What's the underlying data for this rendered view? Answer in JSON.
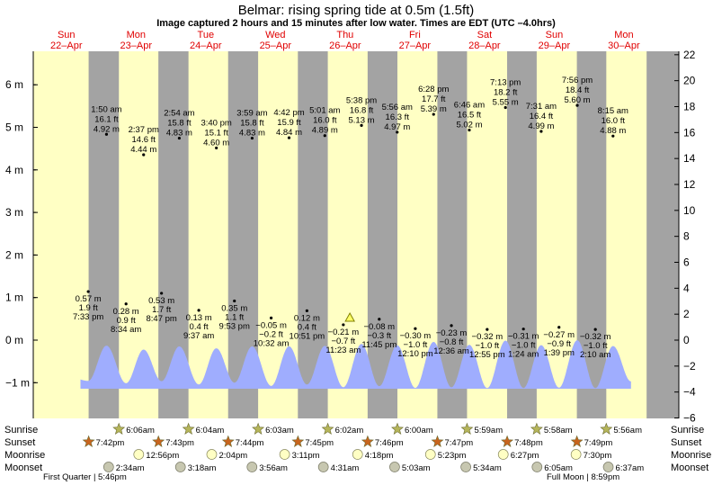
{
  "title": "Belmar: rising  spring tide at 0.5m (1.5ft)",
  "subtitle": "Image captured 2 hours and 15 minutes after low water. Times are EDT (UTC –4.0hrs)",
  "colors": {
    "water": "#9fadfe",
    "day": "#ffffc4",
    "night": "#a3a3a3",
    "dayLabel": "#e00000",
    "sun": "#b5b55a",
    "sunset": "#c8641e",
    "moonrise": "#ffffc4",
    "moonset": "#c7c7b0"
  },
  "chart_data": {
    "type": "area",
    "ylabel_left_unit": "m",
    "ylabel_right_unit": "ft",
    "ylim_m": [
      -1.75,
      6.7
    ],
    "left_ticks": [
      "−1 m",
      "0 m",
      "1 m",
      "2 m",
      "3 m",
      "4 m",
      "5 m",
      "6 m"
    ],
    "right_ticks": [
      "−6 ft",
      "−4 ft",
      "−2 ft",
      "0 ft",
      "2 ft",
      "4 ft",
      "6 ft",
      "8 ft",
      "10 ft",
      "12 ft",
      "14 ft",
      "16 ft",
      "18 ft",
      "20 ft",
      "22 ft"
    ],
    "days": [
      {
        "name": "Sun",
        "date": "22–Apr"
      },
      {
        "name": "Mon",
        "date": "23–Apr"
      },
      {
        "name": "Tue",
        "date": "24–Apr"
      },
      {
        "name": "Wed",
        "date": "25–Apr"
      },
      {
        "name": "Thu",
        "date": "26–Apr"
      },
      {
        "name": "Fri",
        "date": "27–Apr"
      },
      {
        "name": "Sat",
        "date": "28–Apr"
      },
      {
        "name": "Sun",
        "date": "29–Apr"
      },
      {
        "name": "Mon",
        "date": "30–Apr"
      }
    ],
    "high_tides": [
      {
        "time": "1:50 am",
        "ft": "16.1 ft",
        "m": "4.92 m"
      },
      {
        "time": "2:37 pm",
        "ft": "14.6 ft",
        "m": "4.44 m"
      },
      {
        "time": "2:54 am",
        "ft": "15.8 ft",
        "m": "4.83 m"
      },
      {
        "time": "3:40 pm",
        "ft": "15.1 ft",
        "m": "4.60 m"
      },
      {
        "time": "3:59 am",
        "ft": "15.8 ft",
        "m": "4.83 m"
      },
      {
        "time": "4:42 pm",
        "ft": "15.9 ft",
        "m": "4.84 m"
      },
      {
        "time": "5:01 am",
        "ft": "16.0 ft",
        "m": "4.89 m"
      },
      {
        "time": "5:38 pm",
        "ft": "16.8 ft",
        "m": "5.13 m"
      },
      {
        "time": "5:56 am",
        "ft": "16.3 ft",
        "m": "4.97 m"
      },
      {
        "time": "6:28 pm",
        "ft": "17.7 ft",
        "m": "5.39 m"
      },
      {
        "time": "6:46 am",
        "ft": "16.5 ft",
        "m": "5.02 m"
      },
      {
        "time": "7:13 pm",
        "ft": "18.2 ft",
        "m": "5.55 m"
      },
      {
        "time": "7:31 am",
        "ft": "16.4 ft",
        "m": "4.99 m"
      },
      {
        "time": "7:56 pm",
        "ft": "18.4 ft",
        "m": "5.60 m"
      },
      {
        "time": "8:15 am",
        "ft": "16.0 ft",
        "m": "4.88 m"
      }
    ],
    "low_tides": [
      {
        "m": "0.57 m",
        "ft": "1.9 ft",
        "time": "7:33 pm"
      },
      {
        "m": "0.28 m",
        "ft": "0.9 ft",
        "time": "8:34 am"
      },
      {
        "m": "0.53 m",
        "ft": "1.7 ft",
        "time": "8:47 pm"
      },
      {
        "m": "0.13 m",
        "ft": "0.4 ft",
        "time": "9:37 am"
      },
      {
        "m": "0.35 m",
        "ft": "1.1 ft",
        "time": "9:53 pm"
      },
      {
        "m": "−0.05 m",
        "ft": "−0.2 ft",
        "time": "10:32 am"
      },
      {
        "m": "0.12 m",
        "ft": "0.4 ft",
        "time": "10:51 pm"
      },
      {
        "m": "−0.21 m",
        "ft": "−0.7 ft",
        "time": "11:23 am"
      },
      {
        "m": "−0.08 m",
        "ft": "−0.3 ft",
        "time": "11:45 pm"
      },
      {
        "m": "−0.30 m",
        "ft": "−1.0 ft",
        "time": "12:10 pm"
      },
      {
        "m": "−0.23 m",
        "ft": "−0.8 ft",
        "time": "12:36 am"
      },
      {
        "m": "−0.32 m",
        "ft": "−1.0 ft",
        "time": "12:55 pm"
      },
      {
        "m": "−0.31 m",
        "ft": "−1.0 ft",
        "time": "1:24 am"
      },
      {
        "m": "−0.27 m",
        "ft": "−0.9 ft",
        "time": "1:39 pm"
      },
      {
        "m": "−0.32 m",
        "ft": "−1.0 ft",
        "time": "2:10 am"
      }
    ],
    "row_labels": [
      "Sunrise",
      "Sunset",
      "Moonrise",
      "Moonset"
    ],
    "sunrise": [
      "6:06am",
      "6:04am",
      "6:03am",
      "6:02am",
      "6:00am",
      "5:59am",
      "5:58am",
      "5:56am"
    ],
    "sunset": [
      "7:42pm",
      "7:43pm",
      "7:44pm",
      "7:45pm",
      "7:46pm",
      "7:47pm",
      "7:48pm",
      "7:49pm"
    ],
    "moonrise": [
      "12:56pm",
      "2:04pm",
      "3:11pm",
      "4:18pm",
      "5:23pm",
      "6:27pm",
      "7:30pm"
    ],
    "moonset": [
      "2:34am",
      "3:18am",
      "3:56am",
      "4:31am",
      "5:03am",
      "5:34am",
      "6:05am",
      "6:37am"
    ],
    "moon_phases": [
      "First Quarter | 5:46pm",
      "Full Moon | 8:59pm"
    ],
    "current_level_m": 0.5
  }
}
